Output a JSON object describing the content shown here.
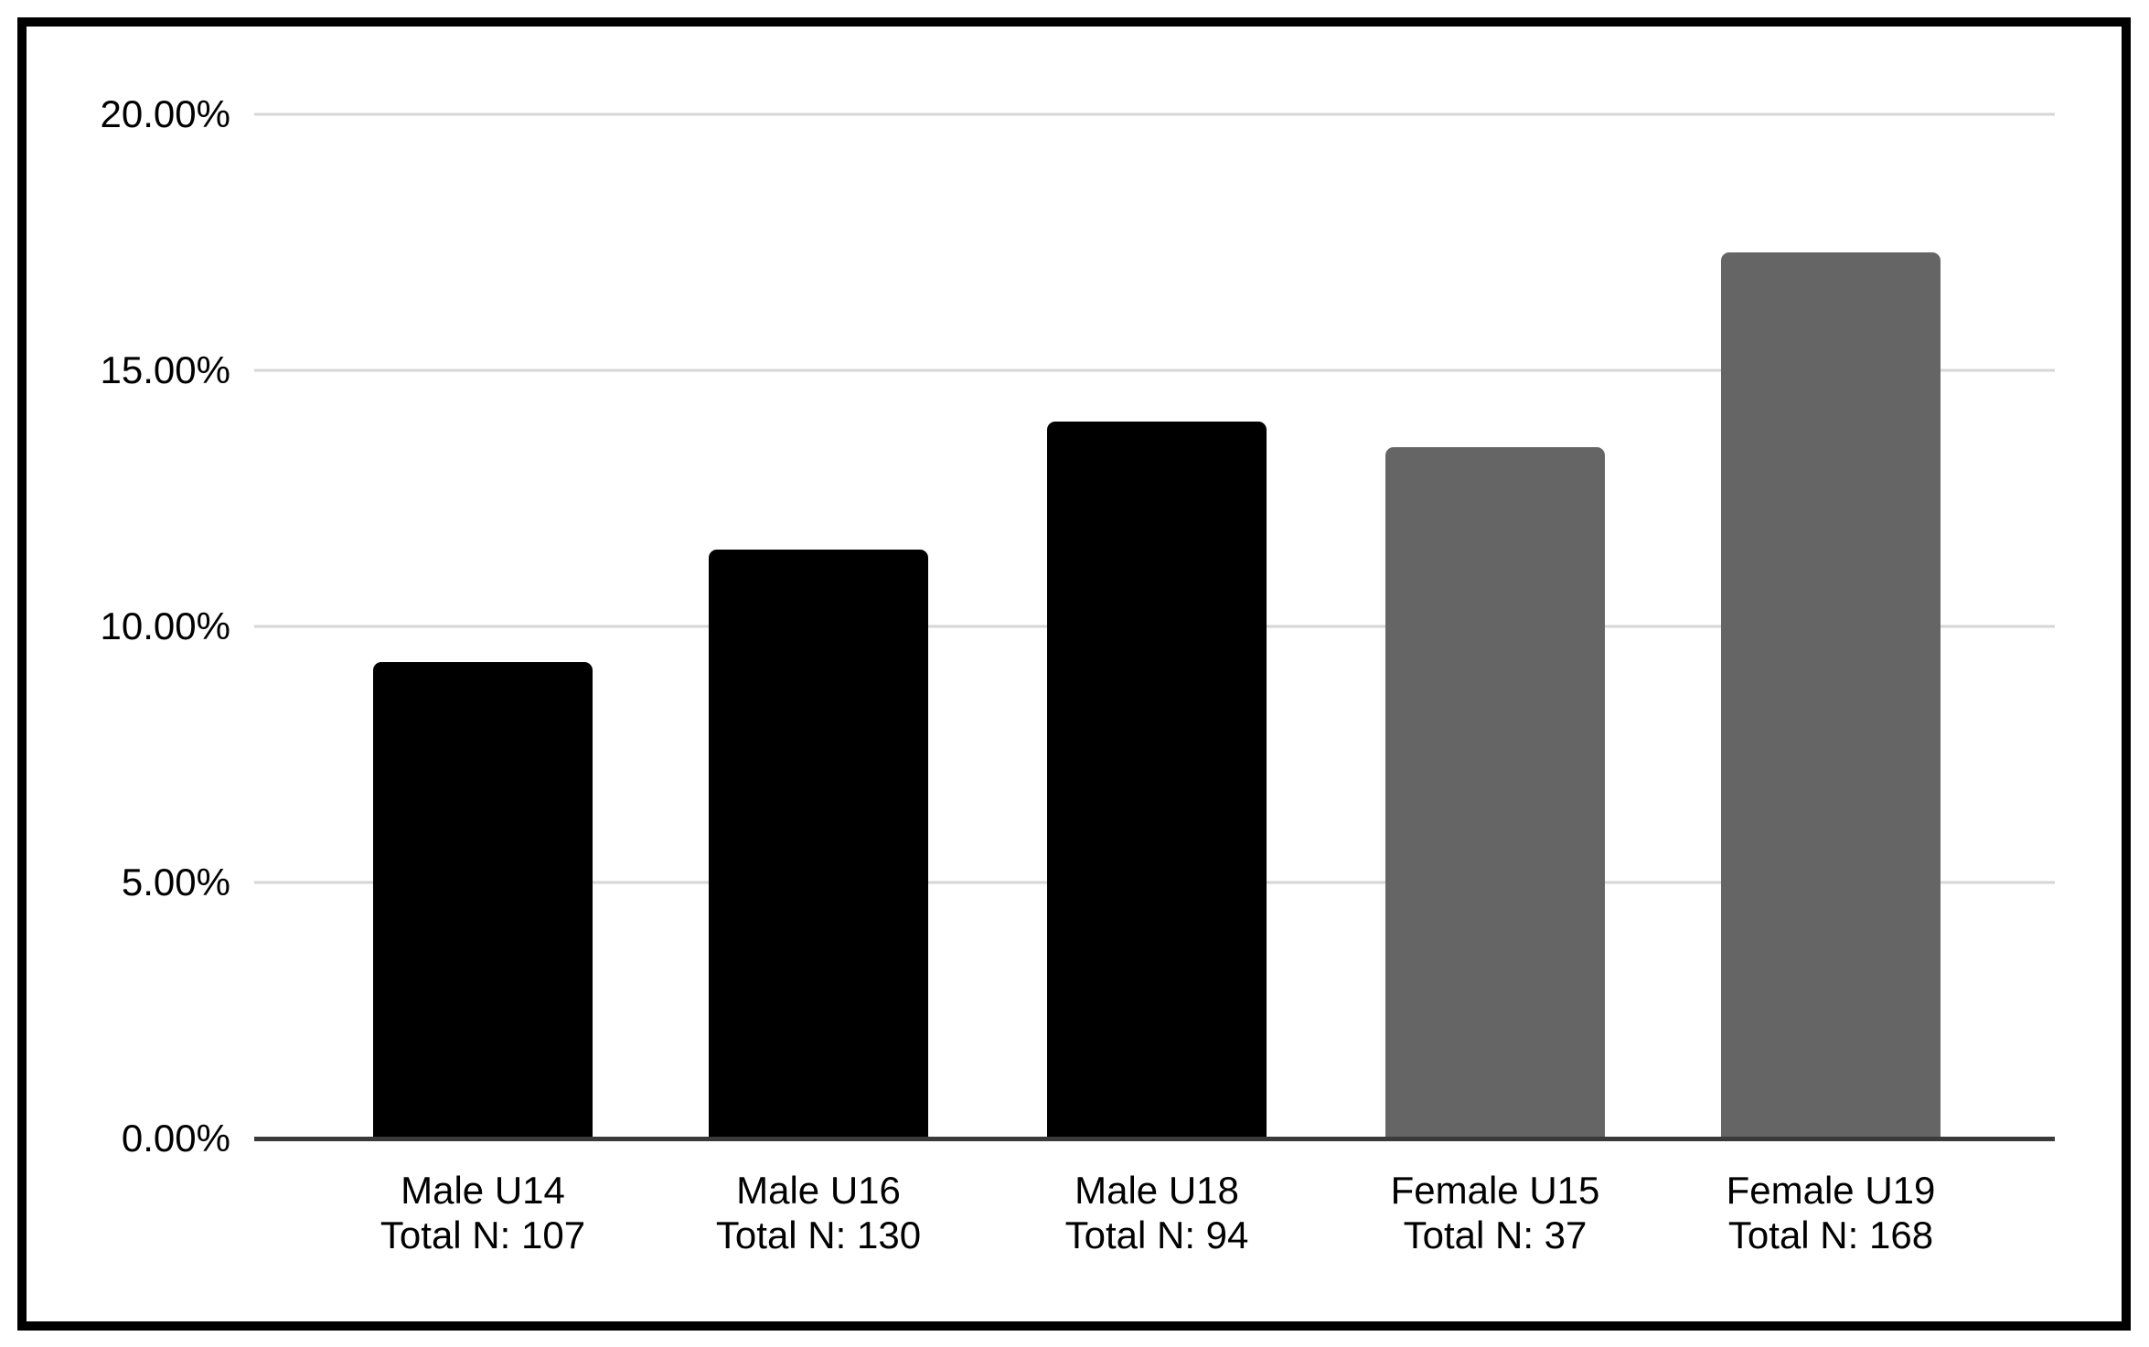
{
  "chart_data": {
    "type": "bar",
    "title": "",
    "categories": [
      "Male U14",
      "Male U16",
      "Male U18",
      "Female U15",
      "Female U19"
    ],
    "total_n_prefix": "Total N:",
    "total_n": [
      107,
      130,
      94,
      37,
      168
    ],
    "x_tick_labels": [
      [
        "Male U14",
        "Total N: 107"
      ],
      [
        "Male U16",
        "Total N: 130"
      ],
      [
        "Male U18",
        "Total N: 94"
      ],
      [
        "Female U15",
        "Total N: 37"
      ],
      [
        "Female U19",
        "Total N: 168"
      ]
    ],
    "values": [
      9.3,
      11.5,
      14.0,
      13.5,
      17.3
    ],
    "unit": "percent",
    "bar_colors": [
      "#000000",
      "#000000",
      "#000000",
      "#656565",
      "#656565"
    ],
    "xlabel": "",
    "ylabel": "",
    "ylim": [
      0,
      20
    ],
    "y_axis": {
      "min": 0,
      "max": 20,
      "ticks": [
        {
          "value": 20,
          "label": "20.00%"
        },
        {
          "value": 15,
          "label": "15.00%"
        },
        {
          "value": 10,
          "label": "10.00%"
        },
        {
          "value": 5,
          "label": "5.00%"
        },
        {
          "value": 0,
          "label": "0.00%"
        }
      ]
    },
    "grid": true,
    "legend_position": "none"
  },
  "colors": {
    "background": "#ffffff",
    "frame_border": "#000000",
    "gridline": "#d6d6d6",
    "axis_line": "#3a3a3a",
    "text": "#000000"
  }
}
